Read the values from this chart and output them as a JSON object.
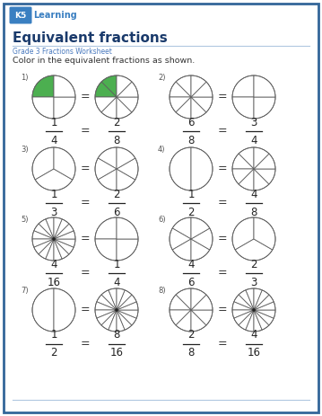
{
  "title": "Equivalent fractions",
  "subtitle": "Grade 3 Fractions Worksheet",
  "instruction": "Color in the equivalent fractions as shown.",
  "title_color": "#1a3a6b",
  "subtitle_color": "#4a7abf",
  "text_color": "#333333",
  "bg_color": "#ffffff",
  "border_color": "#336699",
  "problems": [
    {
      "num": "1)",
      "frac1_num": "1",
      "frac1_den": "4",
      "frac2_num": "2",
      "frac2_den": "8",
      "slices1": 4,
      "filled1": 1,
      "slices2": 8,
      "filled2": 2,
      "fill_color": "#4caf50",
      "col": 0,
      "row": 0
    },
    {
      "num": "2)",
      "frac1_num": "6",
      "frac1_den": "8",
      "frac2_num": "3",
      "frac2_den": "4",
      "slices1": 8,
      "filled1": 0,
      "slices2": 4,
      "filled2": 0,
      "fill_color": "#4caf50",
      "col": 1,
      "row": 0
    },
    {
      "num": "3)",
      "frac1_num": "1",
      "frac1_den": "3",
      "frac2_num": "2",
      "frac2_den": "6",
      "slices1": 3,
      "filled1": 0,
      "slices2": 6,
      "filled2": 0,
      "fill_color": "#4caf50",
      "col": 0,
      "row": 1
    },
    {
      "num": "4)",
      "frac1_num": "1",
      "frac1_den": "2",
      "frac2_num": "4",
      "frac2_den": "8",
      "slices1": 2,
      "filled1": 0,
      "slices2": 8,
      "filled2": 0,
      "fill_color": "#4caf50",
      "col": 1,
      "row": 1
    },
    {
      "num": "5)",
      "frac1_num": "4",
      "frac1_den": "16",
      "frac2_num": "1",
      "frac2_den": "4",
      "slices1": 16,
      "filled1": 0,
      "slices2": 4,
      "filled2": 0,
      "fill_color": "#4caf50",
      "col": 0,
      "row": 2
    },
    {
      "num": "6)",
      "frac1_num": "4",
      "frac1_den": "6",
      "frac2_num": "2",
      "frac2_den": "3",
      "slices1": 6,
      "filled1": 0,
      "slices2": 3,
      "filled2": 0,
      "fill_color": "#4caf50",
      "col": 1,
      "row": 2
    },
    {
      "num": "7)",
      "frac1_num": "1",
      "frac1_den": "2",
      "frac2_num": "8",
      "frac2_den": "16",
      "slices1": 2,
      "filled1": 0,
      "slices2": 16,
      "filled2": 0,
      "fill_color": "#4caf50",
      "col": 0,
      "row": 3
    },
    {
      "num": "8)",
      "frac1_num": "2",
      "frac1_den": "8",
      "frac2_num": "4",
      "frac2_den": "16",
      "slices1": 8,
      "filled1": 0,
      "slices2": 16,
      "filled2": 0,
      "fill_color": "#4caf50",
      "col": 1,
      "row": 3
    }
  ]
}
